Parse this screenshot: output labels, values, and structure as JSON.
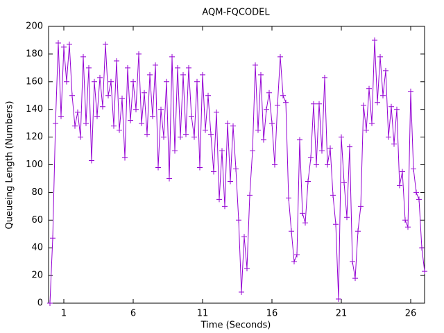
{
  "chart_data": {
    "type": "line",
    "title": "AQM-FQCODEL",
    "xlabel": "Time (Seconds)",
    "ylabel": "Queueing Length (Numbers)",
    "x": [
      0,
      0.2,
      0.4,
      0.6,
      0.8,
      1,
      1.2,
      1.4,
      1.6,
      1.8,
      2,
      2.2,
      2.4,
      2.6,
      2.8,
      3,
      3.2,
      3.4,
      3.6,
      3.8,
      4,
      4.2,
      4.4,
      4.6,
      4.8,
      5,
      5.2,
      5.4,
      5.6,
      5.8,
      6,
      6.2,
      6.4,
      6.6,
      6.8,
      7,
      7.2,
      7.4,
      7.6,
      7.8,
      8,
      8.2,
      8.4,
      8.6,
      8.8,
      9,
      9.2,
      9.4,
      9.6,
      9.8,
      10,
      10.2,
      10.4,
      10.6,
      10.8,
      11,
      11.2,
      11.4,
      11.6,
      11.8,
      12,
      12.2,
      12.4,
      12.6,
      12.8,
      13,
      13.2,
      13.4,
      13.6,
      13.8,
      14,
      14.2,
      14.4,
      14.6,
      14.8,
      15,
      15.2,
      15.4,
      15.6,
      15.8,
      16,
      16.2,
      16.4,
      16.6,
      16.8,
      17,
      17.2,
      17.4,
      17.6,
      17.8,
      18,
      18.2,
      18.4,
      18.6,
      18.8,
      19,
      19.2,
      19.4,
      19.6,
      19.8,
      20,
      20.2,
      20.4,
      20.6,
      20.8,
      21,
      21.2,
      21.4,
      21.6,
      21.8,
      22,
      22.2,
      22.4,
      22.6,
      22.8,
      23,
      23.2,
      23.4,
      23.6,
      23.8,
      24,
      24.2,
      24.4,
      24.6,
      24.8,
      25,
      25.2,
      25.4,
      25.6,
      25.8,
      26,
      26.2,
      26.4,
      26.6,
      26.8,
      27
    ],
    "series": [
      {
        "name": "AQM-FQCODEL",
        "color": "#9400d3",
        "values": [
          0,
          47,
          130,
          188,
          135,
          185,
          160,
          187,
          150,
          128,
          138,
          120,
          178,
          130,
          170,
          103,
          160,
          135,
          163,
          142,
          187,
          150,
          160,
          128,
          175,
          125,
          148,
          105,
          170,
          132,
          160,
          140,
          180,
          130,
          152,
          122,
          165,
          135,
          172,
          98,
          140,
          120,
          160,
          90,
          178,
          110,
          170,
          120,
          165,
          122,
          170,
          135,
          120,
          160,
          98,
          165,
          125,
          150,
          122,
          95,
          138,
          75,
          110,
          70,
          130,
          88,
          128,
          97,
          60,
          8,
          48,
          25,
          78,
          110,
          172,
          125,
          165,
          118,
          140,
          152,
          130,
          100,
          143,
          178,
          150,
          145,
          76,
          52,
          30,
          35,
          118,
          65,
          58,
          88,
          105,
          144,
          100,
          144,
          110,
          163,
          100,
          112,
          78,
          57,
          3,
          120,
          87,
          62,
          113,
          30,
          18,
          52,
          70,
          143,
          125,
          155,
          130,
          190,
          145,
          178,
          150,
          168,
          120,
          142,
          115,
          140,
          85,
          95,
          60,
          55,
          153,
          97,
          80,
          75,
          40,
          23
        ]
      }
    ],
    "xlim": [
      -0.1,
      27
    ],
    "ylim": [
      0,
      200
    ],
    "xticks": [
      1,
      6,
      11,
      16,
      21,
      26
    ],
    "yticks": [
      0,
      20,
      40,
      60,
      80,
      100,
      120,
      140,
      160,
      180,
      200
    ],
    "grid": false
  }
}
